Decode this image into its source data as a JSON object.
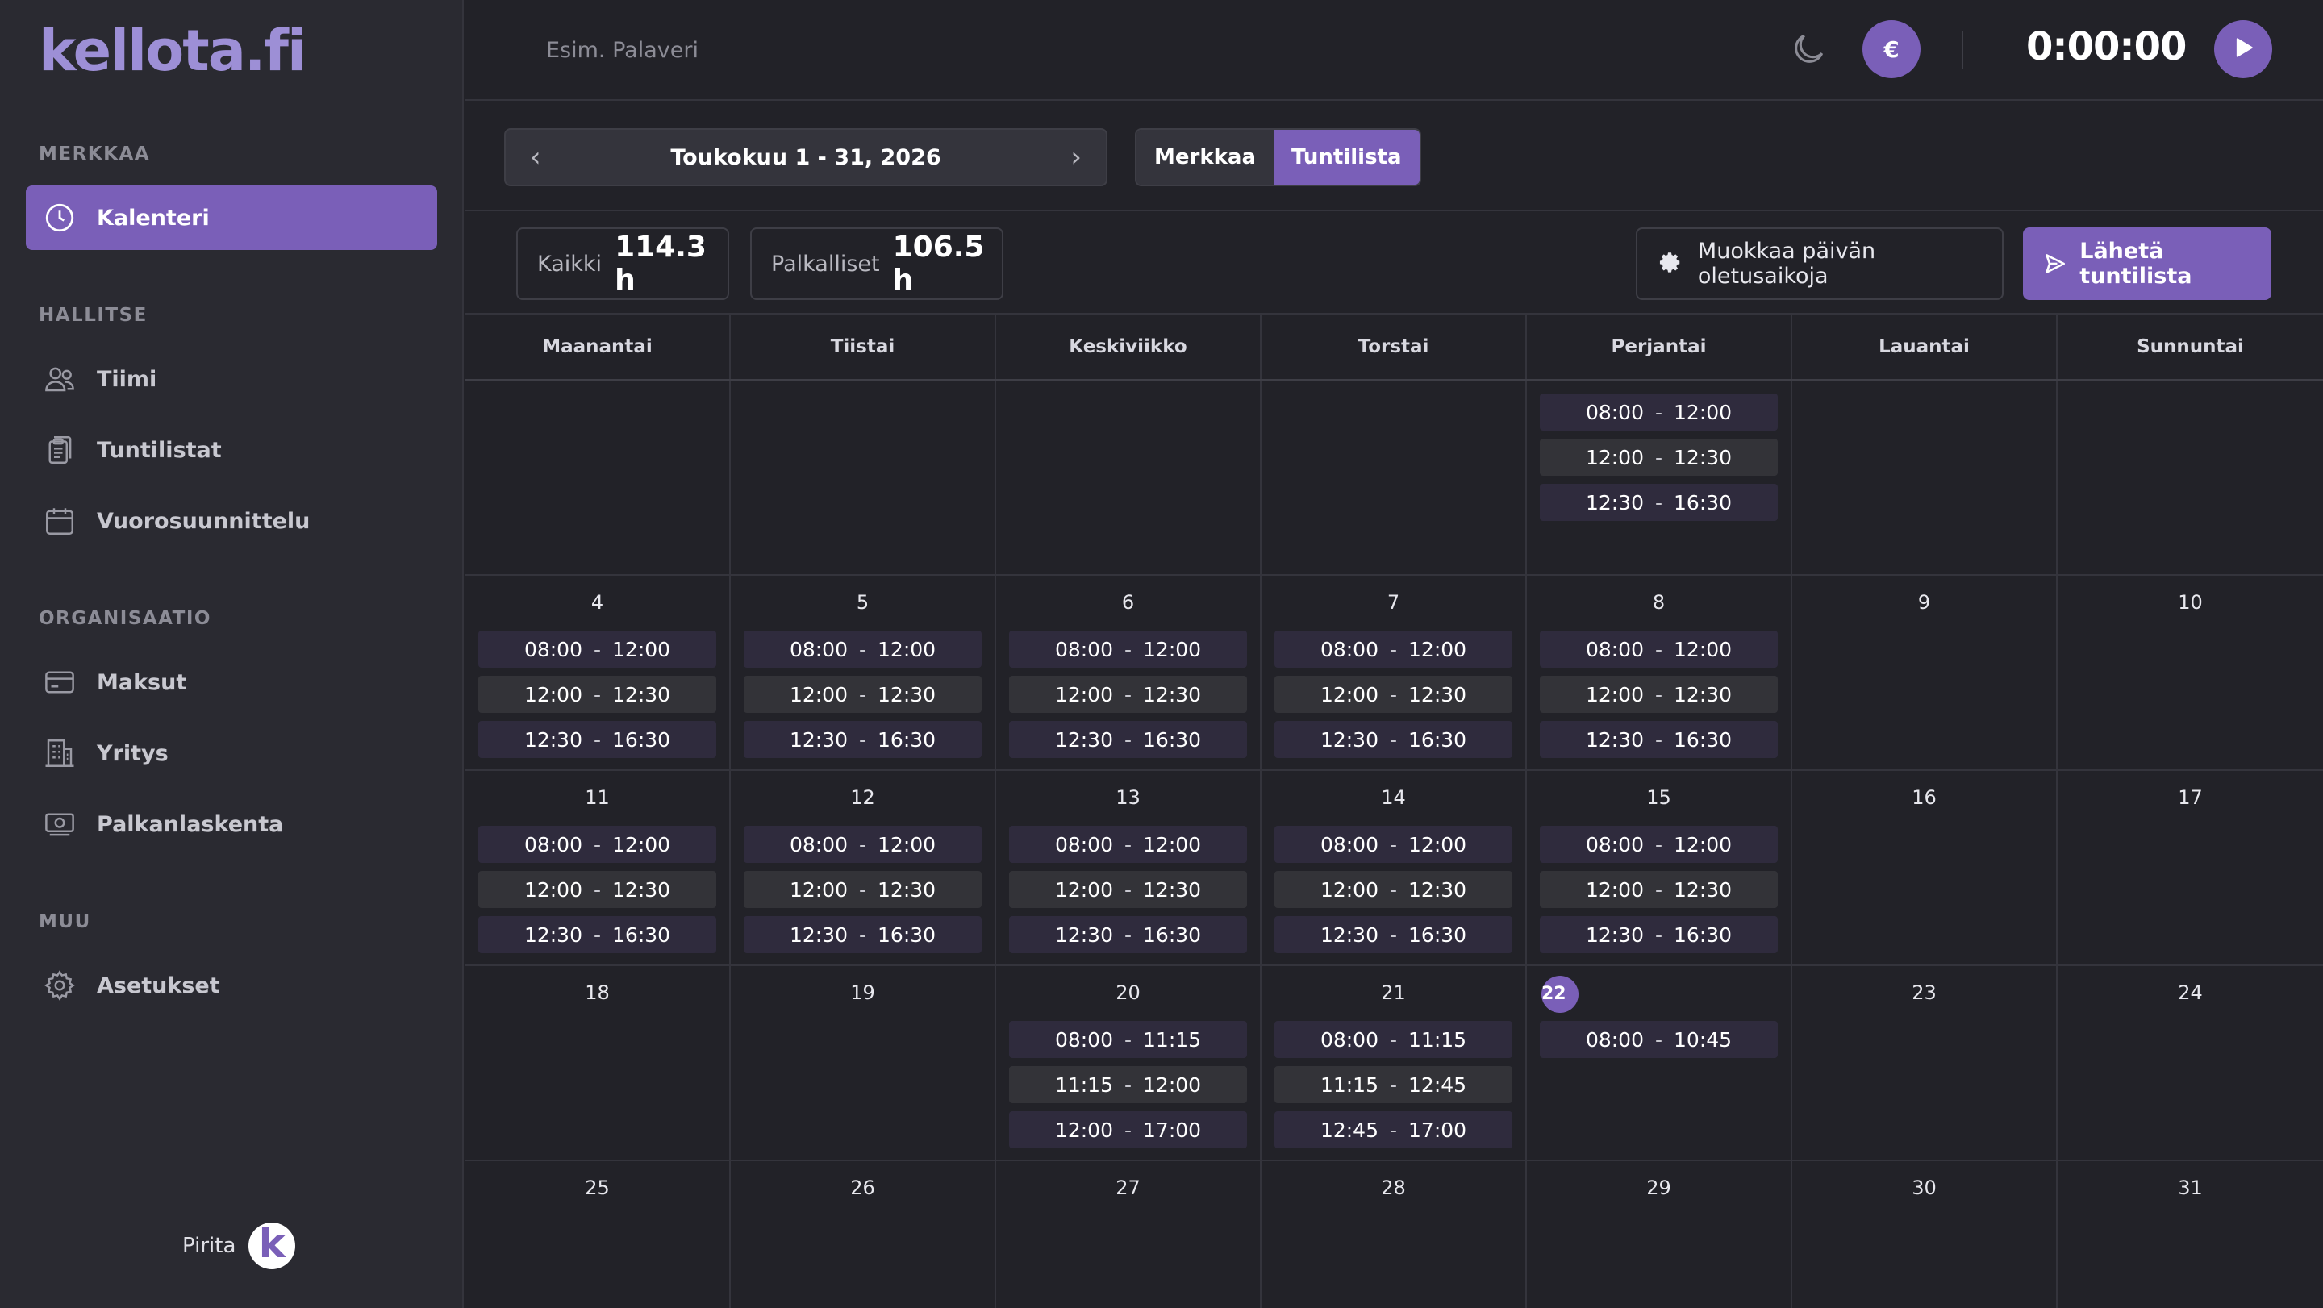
{
  "app": {
    "logo": "kellota.fi"
  },
  "sidebar": {
    "sections": [
      {
        "title": "MERKKAA"
      },
      {
        "title": "HALLITSE"
      },
      {
        "title": "ORGANISAATIO"
      },
      {
        "title": "MUU"
      }
    ],
    "items": [
      {
        "label": "Kalenteri",
        "icon": "clock-icon",
        "active": true
      },
      {
        "label": "Tiimi",
        "icon": "users-icon"
      },
      {
        "label": "Tuntilistat",
        "icon": "clipboard-icon"
      },
      {
        "label": "Vuorosuunnittelu",
        "icon": "calendar-icon"
      },
      {
        "label": "Maksut",
        "icon": "credit-card-icon"
      },
      {
        "label": "Yritys",
        "icon": "building-icon"
      },
      {
        "label": "Palkanlaskenta",
        "icon": "money-icon"
      },
      {
        "label": "Asetukset",
        "icon": "gear-icon"
      }
    ],
    "user": {
      "name": "Pirita",
      "avatar_letter": "k"
    }
  },
  "topbar": {
    "task_placeholder": "Esim. Palaveri",
    "currency_symbol": "€",
    "timer": "0:00:00"
  },
  "toolbar": {
    "date_range": "Toukokuu 1 - 31, 2026",
    "view_toggle": [
      "Merkkaa",
      "Tuntilista"
    ],
    "active_view": "Tuntilista"
  },
  "summary": {
    "all_label": "Kaikki",
    "all_value": "114.3 h",
    "paid_label": "Palkalliset",
    "paid_value": "106.5 h",
    "edit_defaults_label": "Muokkaa päivän oletusaikoja",
    "send_label": "Lähetä tuntilista"
  },
  "calendar": {
    "weekdays": [
      "Maanantai",
      "Tiistai",
      "Keskiviikko",
      "Torstai",
      "Perjantai",
      "Lauantai",
      "Sunnuntai"
    ],
    "today": "22",
    "weeks": [
      [
        {
          "day": "",
          "entries": []
        },
        {
          "day": "",
          "entries": []
        },
        {
          "day": "",
          "entries": []
        },
        {
          "day": "",
          "entries": []
        },
        {
          "day": "",
          "entries": [
            [
              "08:00",
              "12:00"
            ],
            [
              "12:00",
              "12:30"
            ],
            [
              "12:30",
              "16:30"
            ]
          ]
        },
        {
          "day": "",
          "entries": []
        },
        {
          "day": "",
          "entries": []
        }
      ],
      [
        {
          "day": "4",
          "entries": [
            [
              "08:00",
              "12:00"
            ],
            [
              "12:00",
              "12:30"
            ],
            [
              "12:30",
              "16:30"
            ]
          ]
        },
        {
          "day": "5",
          "entries": [
            [
              "08:00",
              "12:00"
            ],
            [
              "12:00",
              "12:30"
            ],
            [
              "12:30",
              "16:30"
            ]
          ]
        },
        {
          "day": "6",
          "entries": [
            [
              "08:00",
              "12:00"
            ],
            [
              "12:00",
              "12:30"
            ],
            [
              "12:30",
              "16:30"
            ]
          ]
        },
        {
          "day": "7",
          "entries": [
            [
              "08:00",
              "12:00"
            ],
            [
              "12:00",
              "12:30"
            ],
            [
              "12:30",
              "16:30"
            ]
          ]
        },
        {
          "day": "8",
          "entries": [
            [
              "08:00",
              "12:00"
            ],
            [
              "12:00",
              "12:30"
            ],
            [
              "12:30",
              "16:30"
            ]
          ]
        },
        {
          "day": "9",
          "entries": []
        },
        {
          "day": "10",
          "entries": []
        }
      ],
      [
        {
          "day": "11",
          "entries": [
            [
              "08:00",
              "12:00"
            ],
            [
              "12:00",
              "12:30"
            ],
            [
              "12:30",
              "16:30"
            ]
          ]
        },
        {
          "day": "12",
          "entries": [
            [
              "08:00",
              "12:00"
            ],
            [
              "12:00",
              "12:30"
            ],
            [
              "12:30",
              "16:30"
            ]
          ]
        },
        {
          "day": "13",
          "entries": [
            [
              "08:00",
              "12:00"
            ],
            [
              "12:00",
              "12:30"
            ],
            [
              "12:30",
              "16:30"
            ]
          ]
        },
        {
          "day": "14",
          "entries": [
            [
              "08:00",
              "12:00"
            ],
            [
              "12:00",
              "12:30"
            ],
            [
              "12:30",
              "16:30"
            ]
          ]
        },
        {
          "day": "15",
          "entries": [
            [
              "08:00",
              "12:00"
            ],
            [
              "12:00",
              "12:30"
            ],
            [
              "12:30",
              "16:30"
            ]
          ]
        },
        {
          "day": "16",
          "entries": []
        },
        {
          "day": "17",
          "entries": []
        }
      ],
      [
        {
          "day": "18",
          "entries": []
        },
        {
          "day": "19",
          "entries": []
        },
        {
          "day": "20",
          "entries": [
            [
              "08:00",
              "11:15"
            ],
            [
              "11:15",
              "12:00"
            ],
            [
              "12:00",
              "17:00"
            ]
          ]
        },
        {
          "day": "21",
          "entries": [
            [
              "08:00",
              "11:15"
            ],
            [
              "11:15",
              "12:45"
            ],
            [
              "12:45",
              "17:00"
            ]
          ]
        },
        {
          "day": "22",
          "entries": [
            [
              "08:00",
              "10:45"
            ]
          ]
        },
        {
          "day": "23",
          "entries": []
        },
        {
          "day": "24",
          "entries": []
        }
      ],
      [
        {
          "day": "25",
          "entries": []
        },
        {
          "day": "26",
          "entries": []
        },
        {
          "day": "27",
          "entries": []
        },
        {
          "day": "28",
          "entries": []
        },
        {
          "day": "29",
          "entries": []
        },
        {
          "day": "30",
          "entries": []
        },
        {
          "day": "31",
          "entries": []
        }
      ]
    ]
  }
}
